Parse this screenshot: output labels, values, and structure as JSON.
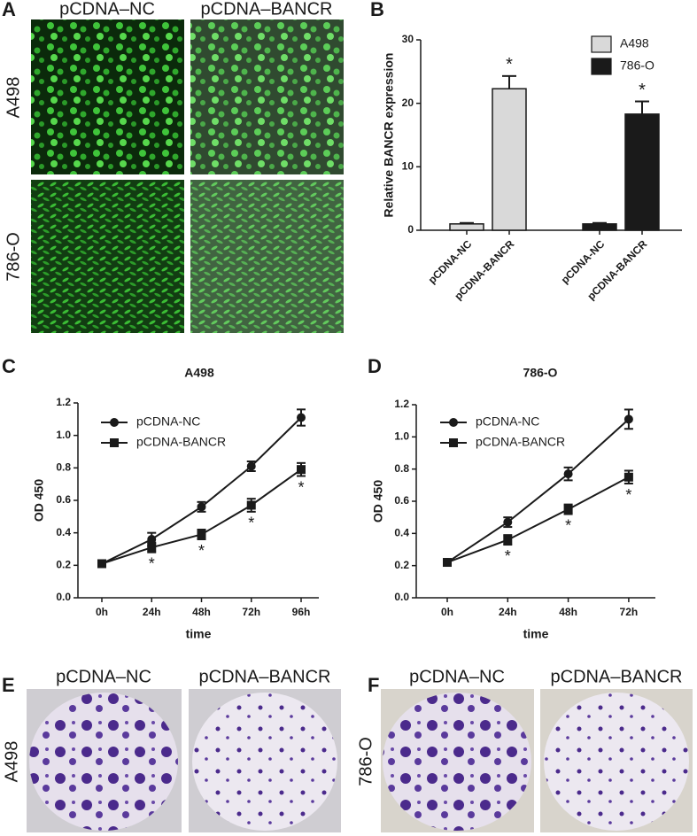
{
  "figure": {
    "panel_labels": [
      "A",
      "B",
      "C",
      "D",
      "E",
      "F"
    ],
    "panel_a": {
      "columns": [
        "pCDNA–NC",
        "pCDNA–BANCR"
      ],
      "rows": [
        "A498",
        "786-O"
      ]
    },
    "panel_e": {
      "columns": [
        "pCDNA–NC",
        "pCDNA–BANCR"
      ],
      "row": "A498"
    },
    "panel_f": {
      "columns": [
        "pCDNA–NC",
        "pCDNA–BANCR"
      ],
      "row": "786-O"
    }
  },
  "chart_data": [
    {
      "type": "bar",
      "ylabel": "Relative BANCR expression",
      "categories": [
        "pCDNA-NC",
        "pCDNA-BANCR",
        "pCDNA-NC",
        "pCDNA-BANCR"
      ],
      "series": [
        {
          "name": "A498",
          "color": "#d9d9d9",
          "values": [
            1,
            22.3,
            null,
            null
          ],
          "errors": [
            0.15,
            2,
            null,
            null
          ],
          "significance": [
            null,
            "*",
            null,
            null
          ]
        },
        {
          "name": "786-O",
          "color": "#1a1a1a",
          "values": [
            null,
            null,
            1,
            18.3
          ],
          "errors": [
            null,
            null,
            0.15,
            2
          ],
          "significance": [
            null,
            null,
            null,
            "*"
          ]
        }
      ],
      "ylim": [
        0,
        30
      ],
      "yticks": [
        0,
        10,
        20,
        30
      ]
    },
    {
      "type": "line",
      "title": "A498",
      "xlabel": "time",
      "ylabel": "OD 450",
      "categories": [
        "0h",
        "24h",
        "48h",
        "72h",
        "96h"
      ],
      "series": [
        {
          "name": "pCDNA-NC",
          "color": "#1a1a1a",
          "marker": "circle",
          "values": [
            0.21,
            0.36,
            0.56,
            0.81,
            1.11
          ],
          "errors": [
            0.01,
            0.04,
            0.03,
            0.03,
            0.05
          ]
        },
        {
          "name": "pCDNA-BANCR",
          "color": "#1a1a1a",
          "marker": "square",
          "values": [
            0.21,
            0.31,
            0.39,
            0.57,
            0.79
          ],
          "errors": [
            0.01,
            0.03,
            0.03,
            0.04,
            0.04
          ],
          "significance": [
            null,
            "*",
            "*",
            "*",
            "*"
          ]
        }
      ],
      "ylim": [
        0,
        1.2
      ],
      "yticks": [
        {
          "value": 0,
          "label": "0.0"
        },
        0.2,
        0.4,
        0.6,
        0.8,
        {
          "value": 1,
          "label": "1.0"
        },
        1.2
      ]
    },
    {
      "type": "line",
      "title": "786-O",
      "xlabel": "time",
      "ylabel": "OD 450",
      "categories": [
        "0h",
        "24h",
        "48h",
        "72h"
      ],
      "series": [
        {
          "name": "pCDNA-NC",
          "color": "#1a1a1a",
          "marker": "circle",
          "values": [
            0.22,
            0.47,
            0.77,
            1.11
          ],
          "errors": [
            0.01,
            0.03,
            0.04,
            0.06
          ]
        },
        {
          "name": "pCDNA-BANCR",
          "color": "#1a1a1a",
          "marker": "square",
          "values": [
            0.22,
            0.36,
            0.55,
            0.75
          ],
          "errors": [
            0.01,
            0.03,
            0.03,
            0.04
          ],
          "significance": [
            null,
            "*",
            "*",
            "*"
          ]
        }
      ],
      "ylim": [
        0,
        1.2
      ],
      "yticks": [
        {
          "value": 0,
          "label": "0.0"
        },
        0.2,
        0.4,
        0.6,
        0.8,
        {
          "value": 1,
          "label": "1.0"
        },
        1.2
      ]
    }
  ]
}
